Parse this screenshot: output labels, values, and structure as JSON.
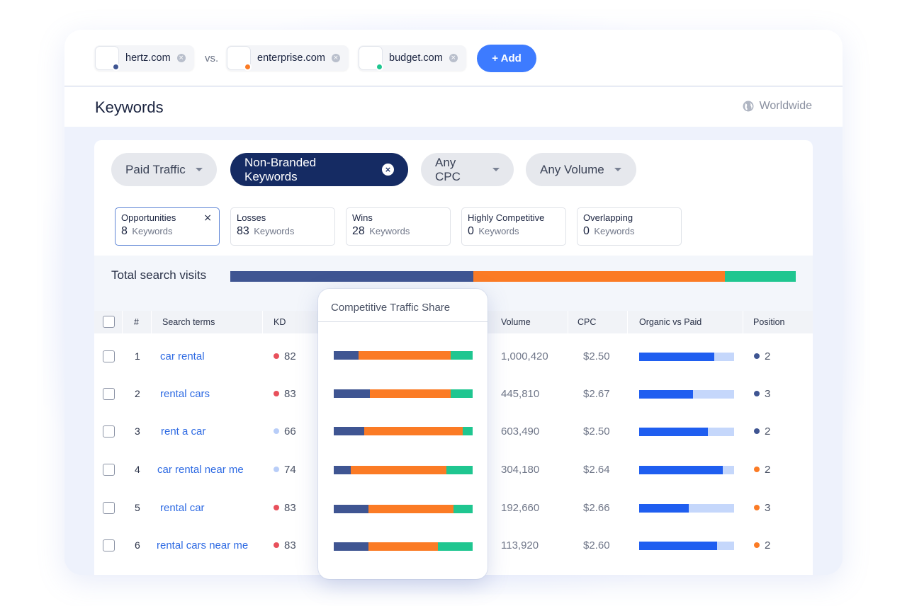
{
  "colors": {
    "navy": "#3f5592",
    "orange": "#fb7b25",
    "green": "#1fc690",
    "accent_blue": "#3d7bff",
    "kd_red": "#e8505b",
    "kd_light": "#b8cdf8",
    "link_blue": "#2f6be3"
  },
  "competitors": {
    "items": [
      {
        "domain": "hertz.com",
        "dot_color": "#3f5592"
      },
      {
        "domain": "enterprise.com",
        "dot_color": "#fb7b25"
      },
      {
        "domain": "budget.com",
        "dot_color": "#1fc690"
      }
    ],
    "vs_label": "vs.",
    "add_label": "+ Add"
  },
  "header": {
    "title": "Keywords",
    "region": "Worldwide",
    "region_icon": "globe-icon"
  },
  "filters": [
    {
      "label": "Paid Traffic",
      "active": false
    },
    {
      "label": "Non-Branded Keywords",
      "active": true
    },
    {
      "label": "Any CPC",
      "active": false
    },
    {
      "label": "Any Volume",
      "active": false
    }
  ],
  "stats": [
    {
      "label": "Opportunities",
      "value": "8",
      "unit": "Keywords",
      "active": true
    },
    {
      "label": "Losses",
      "value": "83",
      "unit": "Keywords",
      "active": false
    },
    {
      "label": "Wins",
      "value": "28",
      "unit": "Keywords",
      "active": false
    },
    {
      "label": "Highly Competitive",
      "value": "0",
      "unit": "Keywords",
      "active": false
    },
    {
      "label": "Overlapping",
      "value": "0",
      "unit": "Keywords",
      "active": false
    }
  ],
  "total_visits": {
    "label": "Total search visits",
    "shares": [
      0.43,
      0.445,
      0.125
    ]
  },
  "table": {
    "columns": {
      "num": "#",
      "term": "Search terms",
      "kd": "KD",
      "volume": "Volume",
      "cpc": "CPC",
      "organic_paid": "Organic vs Paid",
      "position": "Position"
    },
    "rows": [
      {
        "n": "1",
        "term": "car rental",
        "kd": "82",
        "kd_level": "high",
        "volume": "1,000,420",
        "cpc": "$2.50",
        "organic_share": 0.79,
        "position": "2",
        "pos_color": "#3f5592"
      },
      {
        "n": "2",
        "term": "rental cars",
        "kd": "83",
        "kd_level": "high",
        "volume": "445,810",
        "cpc": "$2.67",
        "organic_share": 0.57,
        "position": "3",
        "pos_color": "#3f5592"
      },
      {
        "n": "3",
        "term": "rent a car",
        "kd": "66",
        "kd_level": "low",
        "volume": "603,490",
        "cpc": "$2.50",
        "organic_share": 0.72,
        "position": "2",
        "pos_color": "#3f5592"
      },
      {
        "n": "4",
        "term": "car rental near me",
        "kd": "74",
        "kd_level": "low",
        "volume": "304,180",
        "cpc": "$2.64",
        "organic_share": 0.88,
        "position": "2",
        "pos_color": "#fb7b25"
      },
      {
        "n": "5",
        "term": "rental car",
        "kd": "83",
        "kd_level": "high",
        "volume": "192,660",
        "cpc": "$2.66",
        "organic_share": 0.52,
        "position": "3",
        "pos_color": "#fb7b25"
      },
      {
        "n": "6",
        "term": "rental cars near me",
        "kd": "83",
        "kd_level": "high",
        "volume": "113,920",
        "cpc": "$2.60",
        "organic_share": 0.82,
        "position": "2",
        "pos_color": "#fb7b25"
      }
    ]
  },
  "traffic_share_popup": {
    "title": "Competitive Traffic Share",
    "rows": [
      [
        0.18,
        0.66,
        0.16
      ],
      [
        0.26,
        0.58,
        0.16
      ],
      [
        0.22,
        0.71,
        0.07
      ],
      [
        0.12,
        0.69,
        0.19
      ],
      [
        0.25,
        0.61,
        0.14
      ],
      [
        0.25,
        0.5,
        0.25
      ]
    ]
  }
}
